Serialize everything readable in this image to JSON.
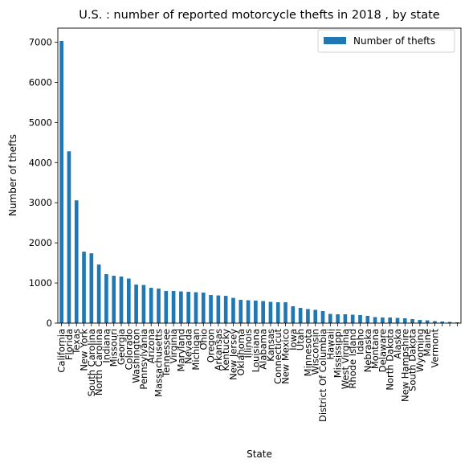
{
  "chart_data": {
    "type": "bar",
    "title": "U.S. : number of reported motorcycle thefts in 2018 , by state",
    "xlabel": "State",
    "ylabel": "Number of thefts",
    "ylim": [
      0,
      7350
    ],
    "yticks": [
      0,
      1000,
      2000,
      3000,
      4000,
      5000,
      6000,
      7000
    ],
    "grid": false,
    "legend_position": "top-right",
    "bar_color": "#1f77b4",
    "series": [
      {
        "name": "Number of thefts",
        "values": [
          7030,
          4280,
          3060,
          1780,
          1740,
          1460,
          1220,
          1180,
          1160,
          1110,
          960,
          950,
          880,
          860,
          800,
          800,
          790,
          780,
          770,
          760,
          700,
          690,
          680,
          630,
          580,
          570,
          560,
          550,
          530,
          520,
          520,
          420,
          380,
          350,
          330,
          300,
          230,
          220,
          220,
          210,
          200,
          180,
          150,
          140,
          140,
          130,
          120,
          100,
          80,
          70,
          50,
          40,
          30,
          20
        ]
      }
    ],
    "categories": [
      "California",
      "Florida",
      "Texas",
      "New York",
      "South Carolina",
      "North Carolina",
      "Indiana",
      "Missouri",
      "Georgia",
      "Colorado",
      "Washington",
      "Pennsylvania",
      "Arizona",
      "Massachusetts",
      "Tennessee",
      "Virginia",
      "Maryland",
      "Nevada",
      "Michigan",
      "Ohio",
      "Oregon",
      "Arkansas",
      "Kentucky",
      "New Jersey",
      "Oklahoma",
      "Illinois",
      "Louisiana",
      "Alabama",
      "Kansas",
      "Connecticut",
      "New Mexico",
      "Iowa",
      "Utah",
      "Minnesota",
      "Wisconsin",
      "District Of Columbia",
      "Hawaii",
      "Mississippi",
      "West Virginia",
      "Rhode Island",
      "Idaho",
      "Nebraska",
      "Montana",
      "Delaware",
      "North Dakota",
      "Alaska",
      "New Hampshire",
      "South Dakota",
      "Wyoming",
      "Maine",
      "Vermont",
      "",
      "",
      ""
    ]
  }
}
